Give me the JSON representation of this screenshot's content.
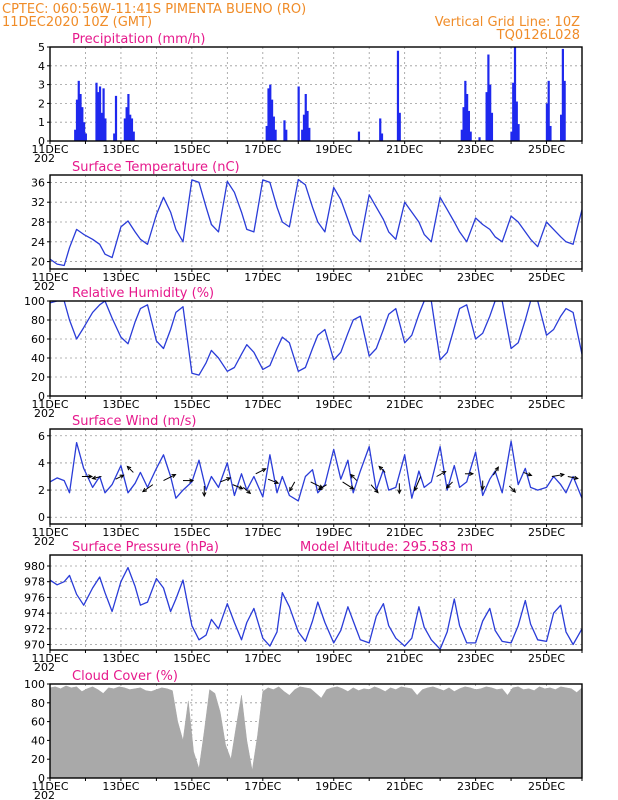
{
  "header": {
    "line1_left": "CPTEC:  060:56W-11:41S  PIMENTA BUENO (RO)",
    "line2_left": "11DEC2020 10Z (GMT)",
    "line2_right": "Vertical Grid Line: 10Z",
    "line3_right": "TQ0126L028"
  },
  "colors": {
    "header": "#f08c28",
    "panel_title": "#e6198c",
    "series_line": "#2a3cd8",
    "precip_bars": "#1e28ee",
    "cloud_fill": "#a9a9a9"
  },
  "x_axis": {
    "start": "11DEC",
    "end": "26DEC",
    "tick_labels": [
      "11DEC",
      "13DEC",
      "15DEC",
      "17DEC",
      "19DEC",
      "21DEC",
      "23DEC",
      "25DEC"
    ],
    "tick_days": [
      11,
      13,
      15,
      17,
      19,
      21,
      23,
      25
    ],
    "corner_label": "202"
  },
  "chart_data": [
    {
      "type": "bar",
      "title": "Precipitation (mm/h)",
      "ylim": [
        0,
        5
      ],
      "yticks": [
        0,
        1,
        2,
        3,
        4,
        5
      ],
      "day_offsets": [
        0.7,
        0.75,
        0.8,
        0.85,
        0.9,
        0.95,
        1.0,
        1.3,
        1.35,
        1.4,
        1.45,
        1.5,
        1.55,
        1.8,
        1.85,
        2.1,
        2.15,
        2.2,
        2.25,
        2.3,
        2.35,
        6.1,
        6.15,
        6.2,
        6.25,
        6.3,
        6.35,
        6.6,
        6.65,
        7.0,
        7.1,
        7.15,
        7.2,
        7.25,
        7.3,
        8.7,
        9.3,
        9.35,
        9.8,
        9.85,
        11.6,
        11.65,
        11.7,
        11.75,
        11.8,
        11.85,
        12.1,
        12.3,
        12.35,
        12.4,
        12.45,
        13.0,
        13.05,
        13.1,
        13.15,
        13.2,
        14.0,
        14.05,
        14.1,
        14.4,
        14.45,
        14.5
      ],
      "values": [
        0.6,
        2.2,
        3.2,
        2.5,
        1.8,
        1.0,
        0.4,
        3.1,
        2.6,
        2.9,
        1.5,
        2.8,
        1.2,
        0.4,
        2.4,
        1.2,
        1.8,
        2.5,
        1.4,
        1.2,
        0.5,
        0.8,
        2.8,
        3.0,
        2.2,
        1.3,
        0.6,
        1.1,
        0.6,
        2.9,
        0.6,
        1.4,
        2.5,
        1.6,
        0.7,
        0.5,
        1.2,
        0.4,
        4.8,
        1.5,
        0.6,
        1.8,
        3.2,
        2.5,
        1.6,
        0.5,
        0.2,
        2.6,
        4.6,
        3.0,
        1.5,
        0.5,
        3.1,
        5.0,
        2.1,
        0.9,
        2.0,
        3.2,
        0.8,
        1.4,
        4.9,
        3.2
      ]
    },
    {
      "type": "line",
      "title": "Surface Temperature (nC)",
      "ylim": [
        18.5,
        37.5
      ],
      "yticks": [
        20,
        24,
        28,
        32,
        36
      ],
      "x": [
        0,
        0.2,
        0.4,
        0.55,
        0.75,
        0.95,
        1.2,
        1.4,
        1.55,
        1.75,
        2.0,
        2.2,
        2.4,
        2.55,
        2.75,
        3.0,
        3.2,
        3.4,
        3.55,
        3.75,
        4.0,
        4.2,
        4.4,
        4.55,
        4.75,
        5.0,
        5.2,
        5.4,
        5.55,
        5.75,
        6.0,
        6.2,
        6.4,
        6.55,
        6.75,
        7.0,
        7.2,
        7.4,
        7.55,
        7.75,
        8.0,
        8.2,
        8.4,
        8.55,
        8.75,
        9.0,
        9.2,
        9.4,
        9.55,
        9.75,
        10.0,
        10.2,
        10.4,
        10.55,
        10.75,
        11.0,
        11.2,
        11.4,
        11.55,
        11.75,
        12.0,
        12.2,
        12.4,
        12.55,
        12.75,
        13.0,
        13.2,
        13.4,
        13.55,
        13.75,
        14.0,
        14.2,
        14.4,
        14.55,
        14.75,
        15.0
      ],
      "values": [
        20.5,
        19.5,
        19.2,
        22.8,
        26.5,
        25.5,
        24.5,
        23.5,
        21.5,
        20.8,
        27.0,
        28.2,
        26.0,
        24.5,
        23.5,
        29.5,
        33.0,
        30.0,
        26.5,
        24.0,
        36.5,
        36.0,
        31.0,
        27.5,
        26.0,
        36.2,
        34.0,
        30.0,
        26.5,
        26.0,
        36.5,
        36.0,
        31.0,
        28.0,
        27.0,
        36.6,
        35.5,
        31.0,
        28.0,
        26.0,
        35.0,
        32.5,
        28.5,
        25.5,
        24.0,
        33.5,
        31.0,
        28.5,
        26.0,
        24.5,
        32.0,
        30.0,
        28.0,
        25.5,
        24.0,
        33.0,
        30.5,
        28.0,
        26.0,
        24.0,
        28.8,
        27.5,
        26.5,
        25.0,
        24.0,
        29.2,
        28.0,
        26.0,
        24.5,
        23.0,
        28.0,
        26.5,
        25.0,
        24.0,
        23.5,
        30.5
      ]
    },
    {
      "type": "line",
      "title": "Relative Humidity (%)",
      "ylim": [
        0,
        100
      ],
      "yticks": [
        0,
        20,
        40,
        60,
        80,
        100
      ],
      "x": [
        0,
        0.2,
        0.4,
        0.55,
        0.75,
        0.95,
        1.2,
        1.4,
        1.55,
        1.75,
        2.0,
        2.2,
        2.4,
        2.55,
        2.75,
        3.0,
        3.2,
        3.4,
        3.55,
        3.75,
        4.0,
        4.2,
        4.4,
        4.55,
        4.75,
        5.0,
        5.2,
        5.4,
        5.55,
        5.75,
        6.0,
        6.2,
        6.4,
        6.55,
        6.75,
        7.0,
        7.2,
        7.4,
        7.55,
        7.75,
        8.0,
        8.2,
        8.4,
        8.55,
        8.75,
        9.0,
        9.2,
        9.4,
        9.55,
        9.75,
        10.0,
        10.2,
        10.4,
        10.55,
        10.75,
        11.0,
        11.2,
        11.4,
        11.55,
        11.75,
        12.0,
        12.2,
        12.4,
        12.55,
        12.75,
        13.0,
        13.2,
        13.4,
        13.55,
        13.75,
        14.0,
        14.2,
        14.4,
        14.55,
        14.75,
        15.0
      ],
      "values": [
        98,
        100,
        100,
        80,
        60,
        72,
        88,
        96,
        100,
        82,
        62,
        55,
        78,
        92,
        96,
        58,
        50,
        70,
        88,
        94,
        24,
        22,
        35,
        48,
        40,
        26,
        30,
        44,
        54,
        46,
        28,
        32,
        50,
        62,
        56,
        26,
        30,
        50,
        64,
        70,
        38,
        46,
        66,
        80,
        84,
        42,
        50,
        70,
        86,
        92,
        56,
        64,
        86,
        100,
        100,
        38,
        46,
        72,
        92,
        96,
        60,
        66,
        84,
        100,
        100,
        50,
        56,
        80,
        100,
        100,
        64,
        70,
        84,
        92,
        88,
        44
      ]
    },
    {
      "type": "line",
      "title": "Surface Wind (m/s)",
      "ylim": [
        -0.5,
        6.5
      ],
      "yticks": [
        0,
        2,
        4,
        6
      ],
      "x": [
        0,
        0.2,
        0.4,
        0.55,
        0.75,
        0.95,
        1.2,
        1.4,
        1.55,
        1.75,
        2.0,
        2.2,
        2.4,
        2.55,
        2.75,
        3.0,
        3.2,
        3.4,
        3.55,
        3.75,
        4.0,
        4.2,
        4.4,
        4.55,
        4.75,
        5.0,
        5.2,
        5.4,
        5.55,
        5.75,
        6.0,
        6.2,
        6.4,
        6.55,
        6.75,
        7.0,
        7.2,
        7.4,
        7.55,
        7.75,
        8.0,
        8.2,
        8.4,
        8.55,
        8.75,
        9.0,
        9.2,
        9.4,
        9.55,
        9.75,
        10.0,
        10.2,
        10.4,
        10.55,
        10.75,
        11.0,
        11.2,
        11.4,
        11.55,
        11.75,
        12.0,
        12.2,
        12.4,
        12.55,
        12.75,
        13.0,
        13.2,
        13.4,
        13.55,
        13.75,
        14.0,
        14.2,
        14.4,
        14.55,
        14.75,
        15.0
      ],
      "values": [
        2.6,
        2.9,
        2.7,
        1.8,
        5.5,
        3.6,
        2.2,
        3.0,
        1.8,
        2.4,
        3.8,
        1.8,
        2.5,
        3.3,
        2.2,
        3.6,
        4.6,
        3.0,
        1.4,
        2.0,
        2.6,
        4.2,
        2.0,
        3.0,
        2.2,
        4.0,
        1.6,
        3.2,
        2.0,
        3.0,
        1.5,
        4.6,
        1.8,
        3.0,
        1.6,
        1.2,
        3.0,
        3.5,
        1.8,
        2.4,
        5.0,
        2.8,
        4.2,
        1.8,
        3.4,
        5.2,
        2.0,
        3.5,
        2.0,
        2.2,
        4.6,
        1.4,
        3.4,
        2.2,
        2.6,
        5.2,
        2.0,
        3.8,
        2.2,
        2.6,
        4.8,
        1.6,
        2.8,
        3.4,
        1.8,
        5.6,
        2.4,
        3.6,
        2.2,
        2.0,
        2.2,
        3.0,
        2.4,
        1.8,
        3.0,
        1.4
      ],
      "arrows": [
        {
          "x": 0.9,
          "y": 3.0,
          "dx": 10,
          "dy": 0
        },
        {
          "x": 1.45,
          "y": 3.0,
          "dx": -9,
          "dy": 2
        },
        {
          "x": 1.85,
          "y": 2.8,
          "dx": 8,
          "dy": -4
        },
        {
          "x": 2.35,
          "y": 3.3,
          "dx": -6,
          "dy": -6
        },
        {
          "x": 2.9,
          "y": 2.4,
          "dx": -10,
          "dy": 7
        },
        {
          "x": 3.2,
          "y": 2.7,
          "dx": 12,
          "dy": -6
        },
        {
          "x": 3.75,
          "y": 2.7,
          "dx": 10,
          "dy": 0
        },
        {
          "x": 4.35,
          "y": 2.3,
          "dx": 0,
          "dy": 10
        },
        {
          "x": 4.8,
          "y": 2.6,
          "dx": 10,
          "dy": -4
        },
        {
          "x": 5.15,
          "y": 2.4,
          "dx": 10,
          "dy": 4
        },
        {
          "x": 5.45,
          "y": 2.2,
          "dx": 7,
          "dy": 6
        },
        {
          "x": 5.8,
          "y": 3.2,
          "dx": 10,
          "dy": -5
        },
        {
          "x": 6.15,
          "y": 2.8,
          "dx": 10,
          "dy": 4
        },
        {
          "x": 6.9,
          "y": 2.6,
          "dx": -5,
          "dy": 9
        },
        {
          "x": 7.35,
          "y": 2.6,
          "dx": 12,
          "dy": 6
        },
        {
          "x": 7.8,
          "y": 2.4,
          "dx": -8,
          "dy": 5
        },
        {
          "x": 8.25,
          "y": 2.6,
          "dx": 11,
          "dy": 7
        },
        {
          "x": 8.65,
          "y": 2.7,
          "dx": -6,
          "dy": -6
        },
        {
          "x": 9.05,
          "y": 2.4,
          "dx": 7,
          "dy": 8
        },
        {
          "x": 9.45,
          "y": 3.3,
          "dx": -6,
          "dy": -6
        },
        {
          "x": 9.85,
          "y": 2.5,
          "dx": 0,
          "dy": 10
        },
        {
          "x": 10.45,
          "y": 3.0,
          "dx": -6,
          "dy": 14
        },
        {
          "x": 10.9,
          "y": 3.0,
          "dx": 9,
          "dy": -5
        },
        {
          "x": 11.35,
          "y": 2.6,
          "dx": -6,
          "dy": 6
        },
        {
          "x": 11.7,
          "y": 3.2,
          "dx": 8,
          "dy": 0
        },
        {
          "x": 12.2,
          "y": 2.7,
          "dx": 0,
          "dy": 9
        },
        {
          "x": 12.5,
          "y": 3.1,
          "dx": 5,
          "dy": -8
        },
        {
          "x": 12.95,
          "y": 2.3,
          "dx": 6,
          "dy": 6
        },
        {
          "x": 13.35,
          "y": 3.3,
          "dx": 8,
          "dy": 3
        },
        {
          "x": 14.15,
          "y": 3.0,
          "dx": 12,
          "dy": -2
        },
        {
          "x": 14.6,
          "y": 3.0,
          "dx": 10,
          "dy": 2
        }
      ]
    },
    {
      "type": "line",
      "title": "Surface Pressure (hPa)",
      "annotation": "Model Altitude: 295.583  m",
      "ylim": [
        969.3,
        981.4
      ],
      "yticks": [
        970,
        972,
        974,
        976,
        978,
        980
      ],
      "x": [
        0,
        0.2,
        0.4,
        0.55,
        0.75,
        0.95,
        1.2,
        1.4,
        1.55,
        1.75,
        2.0,
        2.2,
        2.4,
        2.55,
        2.75,
        3.0,
        3.2,
        3.4,
        3.55,
        3.75,
        4.0,
        4.2,
        4.4,
        4.55,
        4.75,
        5.0,
        5.2,
        5.4,
        5.55,
        5.75,
        6.0,
        6.2,
        6.4,
        6.55,
        6.75,
        7.0,
        7.2,
        7.4,
        7.55,
        7.75,
        8.0,
        8.2,
        8.4,
        8.55,
        8.75,
        9.0,
        9.2,
        9.4,
        9.55,
        9.75,
        10.0,
        10.2,
        10.4,
        10.55,
        10.75,
        11.0,
        11.2,
        11.4,
        11.55,
        11.75,
        12.0,
        12.2,
        12.4,
        12.55,
        12.75,
        13.0,
        13.2,
        13.4,
        13.55,
        13.75,
        14.0,
        14.2,
        14.4,
        14.55,
        14.75,
        15.0
      ],
      "values": [
        978.2,
        977.6,
        978.0,
        978.8,
        976.4,
        975.0,
        977.2,
        978.6,
        976.6,
        974.2,
        978.0,
        979.8,
        977.4,
        975.0,
        975.4,
        978.4,
        977.2,
        974.2,
        975.8,
        978.2,
        972.4,
        970.6,
        971.2,
        973.2,
        972.0,
        975.2,
        972.8,
        970.6,
        972.8,
        974.6,
        970.8,
        969.8,
        971.6,
        976.6,
        974.8,
        971.6,
        970.4,
        973.0,
        975.4,
        972.8,
        970.2,
        971.8,
        974.8,
        973.0,
        970.6,
        970.2,
        973.6,
        975.2,
        972.4,
        970.8,
        969.8,
        970.8,
        974.8,
        972.2,
        970.6,
        969.4,
        971.6,
        975.8,
        972.4,
        970.2,
        970.2,
        973.0,
        974.6,
        971.8,
        970.4,
        970.2,
        972.4,
        975.6,
        972.6,
        970.6,
        970.4,
        974.0,
        975.0,
        971.6,
        970.0,
        972.0
      ]
    },
    {
      "type": "area",
      "title": "Cloud Cover (%)",
      "ylim": [
        0,
        100
      ],
      "yticks": [
        0,
        20,
        40,
        60,
        80,
        100
      ],
      "x": [
        0,
        0.15,
        0.3,
        0.45,
        0.6,
        0.75,
        0.9,
        1.05,
        1.2,
        1.35,
        1.5,
        1.65,
        1.8,
        1.95,
        2.1,
        2.25,
        2.4,
        2.55,
        2.7,
        2.85,
        3.0,
        3.15,
        3.3,
        3.45,
        3.6,
        3.75,
        3.9,
        4.05,
        4.2,
        4.35,
        4.5,
        4.65,
        4.8,
        4.95,
        5.1,
        5.25,
        5.4,
        5.55,
        5.7,
        5.85,
        6.0,
        6.15,
        6.3,
        6.45,
        6.6,
        6.75,
        6.9,
        7.05,
        7.2,
        7.35,
        7.5,
        7.65,
        7.8,
        7.95,
        8.1,
        8.25,
        8.4,
        8.55,
        8.7,
        8.85,
        9.0,
        9.15,
        9.3,
        9.45,
        9.6,
        9.75,
        9.9,
        10.05,
        10.2,
        10.35,
        10.5,
        10.65,
        10.8,
        10.95,
        11.1,
        11.25,
        11.4,
        11.55,
        11.7,
        11.85,
        12.0,
        12.15,
        12.3,
        12.45,
        12.6,
        12.75,
        12.9,
        13.05,
        13.2,
        13.35,
        13.5,
        13.65,
        13.8,
        13.95,
        14.1,
        14.25,
        14.4,
        14.55,
        14.7,
        14.85,
        15.0
      ],
      "values": [
        96,
        97,
        95,
        98,
        96,
        97,
        92,
        95,
        97,
        94,
        90,
        96,
        95,
        97,
        96,
        94,
        95,
        96,
        93,
        92,
        94,
        96,
        95,
        93,
        60,
        40,
        82,
        28,
        10,
        50,
        94,
        90,
        70,
        35,
        20,
        55,
        88,
        40,
        8,
        45,
        92,
        96,
        94,
        97,
        92,
        88,
        94,
        97,
        96,
        95,
        90,
        85,
        94,
        96,
        97,
        95,
        92,
        96,
        93,
        95,
        94,
        97,
        95,
        92,
        96,
        94,
        97,
        96,
        95,
        88,
        94,
        96,
        97,
        95,
        93,
        96,
        92,
        95,
        97,
        96,
        94,
        95,
        97,
        96,
        94,
        95,
        88,
        96,
        97,
        94,
        95,
        93,
        97,
        95,
        96,
        94,
        97,
        96,
        95,
        91,
        96
      ]
    }
  ]
}
